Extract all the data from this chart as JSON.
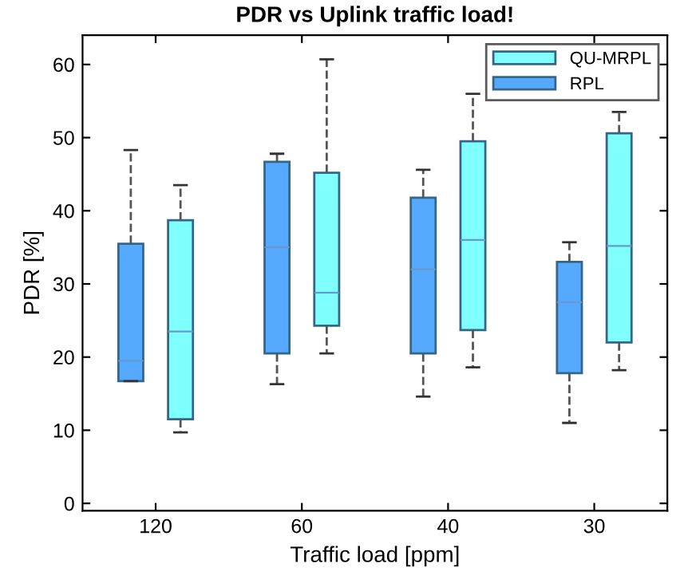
{
  "chart_data": {
    "type": "box",
    "title": "PDR vs Uplink traffic load!",
    "xlabel": "Traffic load [ppm]",
    "ylabel": "PDR [%]",
    "categories": [
      "120",
      "60",
      "40",
      "30"
    ],
    "ylim": [
      -1,
      64
    ],
    "yticks": [
      0,
      10,
      20,
      30,
      40,
      50,
      60
    ],
    "grid": false,
    "legend": "top right",
    "series": [
      {
        "name": "RPL",
        "color": "#55aaff",
        "boxes": [
          {
            "low": 16.7,
            "q1": 16.7,
            "median": 19.5,
            "q3": 35.5,
            "high": 48.3
          },
          {
            "low": 16.3,
            "q1": 20.5,
            "median": 35,
            "q3": 46.7,
            "high": 47.8
          },
          {
            "low": 14.6,
            "q1": 20.5,
            "median": 32,
            "q3": 41.8,
            "high": 45.6
          },
          {
            "low": 11,
            "q1": 17.8,
            "median": 27.5,
            "q3": 33,
            "high": 35.7
          }
        ]
      },
      {
        "name": "QU-MRPL",
        "color": "#80ffff",
        "boxes": [
          {
            "low": 9.7,
            "q1": 11.5,
            "median": 23.5,
            "q3": 38.7,
            "high": 43.5
          },
          {
            "low": 20.5,
            "q1": 24.3,
            "median": 28.8,
            "q3": 45.2,
            "high": 60.7
          },
          {
            "low": 18.6,
            "q1": 23.7,
            "median": 36,
            "q3": 49.5,
            "high": 56
          },
          {
            "low": 18.2,
            "q1": 22,
            "median": 35.2,
            "q3": 50.6,
            "high": 53.5
          }
        ]
      }
    ]
  }
}
